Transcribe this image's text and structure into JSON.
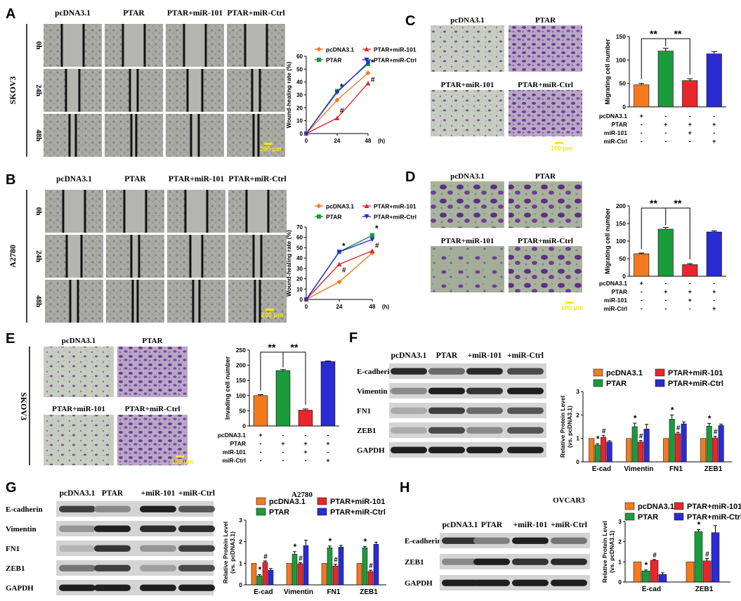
{
  "panels": {
    "A": {
      "letter": "A",
      "cell_line": "SKOV3",
      "columns": [
        "pcDNA3.1",
        "PTAR",
        "PTAR+miR-101",
        "PTAR+miR-Ctrl"
      ],
      "rows": [
        "0h",
        "24h",
        "48h"
      ],
      "scale_bar": "200 μm"
    },
    "B": {
      "letter": "B",
      "cell_line": "A2780",
      "columns": [
        "pcDNA3.1",
        "PTAR",
        "PTAR+miR-101",
        "PTAR+miR-Ctrl"
      ],
      "rows": [
        "0h",
        "24h",
        "48h"
      ],
      "scale_bar": "200 μm"
    },
    "C": {
      "letter": "C",
      "images": [
        "pcDNA3.1",
        "PTAR",
        "PTAR+miR-101",
        "PTAR+miR-Ctrl"
      ],
      "scale_bar": "100 μm"
    },
    "D": {
      "letter": "D",
      "images": [
        "pcDNA3.1",
        "PTAR",
        "PTAR+miR-101",
        "PTAR+miR-Ctrl"
      ],
      "scale_bar": "100 μm"
    },
    "E": {
      "letter": "E",
      "cell_line": "SKOV3",
      "images": [
        "pcDNA3.1",
        "PTAR",
        "PTAR+miR-101",
        "PTAR+miR-Ctrl"
      ],
      "scale_bar": "100 μm"
    },
    "F": {
      "letter": "F",
      "lanes": [
        "pcDNA3.1",
        "PTAR",
        "+miR-101",
        "+miR-Ctrl"
      ],
      "proteins": [
        "E-cadherin",
        "Vimentin",
        "FN1",
        "ZEB1",
        "GAPDH"
      ]
    },
    "G": {
      "letter": "G",
      "cell_line": "A2780",
      "lanes": [
        "pcDNA3.1",
        "PTAR",
        "+miR-101",
        "+miR-Ctrl"
      ],
      "proteins": [
        "E-cadherin",
        "Vimentin",
        "FN1",
        "ZEB1",
        "GAPDH"
      ]
    },
    "H": {
      "letter": "H",
      "cell_line": "OVCAR3",
      "lanes": [
        "pcDNA3.1",
        "PTAR",
        "+miR-101",
        "+miR-Ctrl"
      ],
      "proteins": [
        "E-cadherin",
        "ZEB1",
        "GAPDH"
      ]
    }
  },
  "treatment_table": {
    "rows": [
      "pcDNA3.1",
      "PTAR",
      "miR-101",
      "miR-Ctrl"
    ],
    "signs": [
      [
        "+",
        "-",
        "-",
        "-"
      ],
      [
        "-",
        "+",
        "+",
        "+"
      ],
      [
        "-",
        "-",
        "+",
        "-"
      ],
      [
        "-",
        "-",
        "-",
        "+"
      ]
    ]
  },
  "colors": {
    "pcDNA3.1": "#f47a20",
    "PTAR": "#1b9b3c",
    "PTAR+miR-101": "#e8262b",
    "PTAR+miR-Ctrl": "#2b2bd3"
  },
  "chart_data": [
    {
      "id": "A",
      "type": "line",
      "ylabel": "Wound-healing rate (%)",
      "xlabel": "(h)",
      "x": [
        0,
        24,
        48
      ],
      "xlim": [
        0,
        48
      ],
      "ylim": [
        0,
        60
      ],
      "yticks": [
        0,
        10,
        20,
        30,
        40,
        50,
        60
      ],
      "legend": [
        "pcDNA3.1",
        "PTAR+miR-101",
        "PTAR",
        "PTAR+miR-Ctrl"
      ],
      "series": [
        {
          "name": "pcDNA3.1",
          "values": [
            0,
            26,
            47
          ]
        },
        {
          "name": "PTAR",
          "values": [
            0,
            33,
            54
          ]
        },
        {
          "name": "PTAR+miR-101",
          "values": [
            0,
            12,
            39
          ]
        },
        {
          "name": "PTAR+miR-Ctrl",
          "values": [
            0,
            32,
            55
          ]
        }
      ],
      "annotations": [
        {
          "text": "*",
          "x": 24,
          "y": 34
        },
        {
          "text": "#",
          "x": 24,
          "y": 16
        },
        {
          "text": "*",
          "x": 48,
          "y": 53
        },
        {
          "text": "#",
          "x": 48,
          "y": 40
        }
      ]
    },
    {
      "id": "B",
      "type": "line",
      "ylabel": "Wound-healing rate (%)",
      "xlabel": "(h)",
      "x": [
        0,
        24,
        48
      ],
      "xlim": [
        0,
        48
      ],
      "ylim": [
        0,
        70
      ],
      "yticks": [
        0,
        10,
        20,
        30,
        40,
        50,
        60,
        70
      ],
      "legend": [
        "pcDNA3.1",
        "PTAR+miR-101",
        "PTAR",
        "PTAR+miR-Ctrl"
      ],
      "series": [
        {
          "name": "pcDNA3.1",
          "values": [
            0,
            17,
            45
          ]
        },
        {
          "name": "PTAR",
          "values": [
            0,
            46,
            62
          ]
        },
        {
          "name": "PTAR+miR-101",
          "values": [
            0,
            34,
            47
          ]
        },
        {
          "name": "PTAR+miR-Ctrl",
          "values": [
            0,
            46,
            58
          ]
        }
      ],
      "annotations": [
        {
          "text": "*",
          "x": 24,
          "y": 49
        },
        {
          "text": "#",
          "x": 24,
          "y": 26
        },
        {
          "text": "*",
          "x": 48,
          "y": 66
        },
        {
          "text": "#",
          "x": 48,
          "y": 50
        }
      ]
    },
    {
      "id": "C",
      "type": "bar",
      "ylabel": "Migrating cell number",
      "categories": [
        "pcDNA3.1",
        "PTAR",
        "PTAR+miR-101",
        "PTAR+miR-Ctrl"
      ],
      "values": [
        47,
        119,
        56,
        113
      ],
      "errors": [
        3,
        6,
        4,
        5
      ],
      "ylim": [
        0,
        150
      ],
      "yticks": [
        0,
        50,
        100,
        150
      ],
      "significance": [
        "**",
        "**"
      ]
    },
    {
      "id": "D",
      "type": "bar",
      "ylabel": "Migrating cell number",
      "categories": [
        "pcDNA3.1",
        "PTAR",
        "PTAR+miR-101",
        "PTAR+miR-Ctrl"
      ],
      "values": [
        64,
        134,
        33,
        126
      ],
      "errors": [
        2,
        5,
        3,
        3
      ],
      "ylim": [
        0,
        200
      ],
      "yticks": [
        0,
        50,
        100,
        150,
        200
      ],
      "significance": [
        "**",
        "**"
      ]
    },
    {
      "id": "E",
      "type": "bar",
      "ylabel": "Invading cell number",
      "categories": [
        "pcDNA3.1",
        "PTAR",
        "PTAR+miR-101",
        "PTAR+miR-Ctrl"
      ],
      "values": [
        100,
        182,
        52,
        212
      ],
      "errors": [
        3,
        4,
        4,
        2
      ],
      "ylim": [
        0,
        250
      ],
      "yticks": [
        0,
        50,
        100,
        150,
        200,
        250
      ],
      "significance": [
        "**",
        "**"
      ]
    },
    {
      "id": "F",
      "type": "bar",
      "ylabel": "Relative Protein Level (vs. pcDNA3.1)",
      "categories": [
        "E-cad",
        "Vimentin",
        "FN1",
        "ZEB1"
      ],
      "ylim": [
        0,
        3
      ],
      "yticks": [
        0,
        1,
        2,
        3
      ],
      "legend": [
        "pcDNA3.1",
        "PTAR+miR-101",
        "PTAR",
        "PTAR+miR-Ctrl"
      ],
      "series": [
        {
          "name": "pcDNA3.1",
          "values": [
            1,
            1,
            1,
            1
          ],
          "errors": [
            0,
            0,
            0,
            0
          ]
        },
        {
          "name": "PTAR",
          "values": [
            0.72,
            1.5,
            1.82,
            1.52
          ],
          "errors": [
            0.05,
            0.15,
            0.18,
            0.12
          ]
        },
        {
          "name": "PTAR+miR-101",
          "values": [
            1.05,
            0.85,
            1.2,
            1.02
          ],
          "errors": [
            0.08,
            0.06,
            0.06,
            0.07
          ]
        },
        {
          "name": "PTAR+miR-Ctrl",
          "values": [
            0.85,
            1.4,
            1.62,
            1.55
          ],
          "errors": [
            0.05,
            0.2,
            0.08,
            0.06
          ]
        }
      ],
      "marks": [
        [
          "*",
          "#"
        ],
        [
          "*",
          "#"
        ],
        [
          "*",
          "#"
        ],
        [
          "*",
          "#"
        ]
      ]
    },
    {
      "id": "G",
      "type": "bar",
      "ylabel": "Relative Protein Level (vs. pcDNA3.1)",
      "categories": [
        "E-cad",
        "Vimentin",
        "FN1",
        "ZEB1"
      ],
      "ylim": [
        0,
        3
      ],
      "yticks": [
        0,
        1,
        2,
        3
      ],
      "legend": [
        "pcDNA3.1",
        "PTAR+miR-101",
        "PTAR",
        "PTAR+miR-Ctrl"
      ],
      "series": [
        {
          "name": "pcDNA3.1",
          "values": [
            1,
            1,
            1,
            1
          ],
          "errors": [
            0,
            0,
            0,
            0
          ]
        },
        {
          "name": "PTAR",
          "values": [
            0.42,
            1.42,
            1.72,
            1.72
          ],
          "errors": [
            0.05,
            0.12,
            0.08,
            0.06
          ]
        },
        {
          "name": "PTAR+miR-101",
          "values": [
            1.05,
            0.98,
            0.88,
            0.62
          ],
          "errors": [
            0.06,
            0.05,
            0.08,
            0.06
          ]
        },
        {
          "name": "PTAR+miR-Ctrl",
          "values": [
            0.68,
            1.82,
            1.75,
            1.88
          ],
          "errors": [
            0.08,
            0.25,
            0.08,
            0.1
          ]
        }
      ],
      "marks": [
        [
          "*",
          "#"
        ],
        [
          "*",
          "#"
        ],
        [
          "*",
          "#"
        ],
        [
          "*",
          "#"
        ]
      ]
    },
    {
      "id": "H",
      "type": "bar",
      "ylabel": "Relative Protein Level (vs. pcDNA3.1)",
      "categories": [
        "E-cad",
        "ZEB1"
      ],
      "ylim": [
        0,
        3
      ],
      "yticks": [
        0,
        1,
        2,
        3
      ],
      "legend": [
        "pcDNA3.1",
        "PTAR+miR-101",
        "PTAR",
        "PTAR+miR-Ctrl"
      ],
      "series": [
        {
          "name": "pcDNA3.1",
          "values": [
            1,
            1
          ],
          "errors": [
            0,
            0
          ]
        },
        {
          "name": "PTAR",
          "values": [
            0.55,
            2.5
          ],
          "errors": [
            0.05,
            0.1
          ]
        },
        {
          "name": "PTAR+miR-101",
          "values": [
            1.08,
            1.05
          ],
          "errors": [
            0.04,
            0.12
          ]
        },
        {
          "name": "PTAR+miR-Ctrl",
          "values": [
            0.38,
            2.45
          ],
          "errors": [
            0.08,
            0.35
          ]
        }
      ],
      "marks": [
        [
          "*",
          "#"
        ],
        [
          "*",
          "#"
        ]
      ]
    }
  ]
}
